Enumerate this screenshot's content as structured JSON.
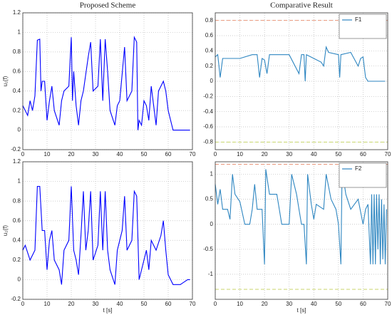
{
  "chart_data": [
    {
      "type": "line",
      "title": "Proposed Scheme",
      "ylabel": "u₁(f)",
      "color": "#0000ff",
      "x": [
        0,
        2,
        3,
        4,
        5,
        6,
        7,
        7.5,
        8,
        9,
        10,
        11,
        12,
        13,
        15,
        16,
        17,
        19,
        20,
        20.5,
        21,
        22,
        23,
        24,
        25,
        27,
        28,
        29,
        31,
        32,
        33,
        34,
        35,
        36,
        38,
        39,
        40,
        42,
        43,
        45,
        46,
        47,
        47.5,
        48,
        49,
        50,
        51,
        52,
        53,
        55,
        56,
        58,
        59,
        60,
        61,
        62,
        65,
        69
      ],
      "values": [
        0.25,
        0.15,
        0.3,
        0.2,
        0.35,
        0.92,
        0.93,
        0.4,
        0.5,
        0.5,
        0.1,
        0.3,
        0.45,
        0.2,
        0.05,
        0.3,
        0.4,
        0.45,
        0.95,
        0.3,
        0.6,
        0.25,
        0.05,
        0.3,
        0.4,
        0.75,
        0.9,
        0.4,
        0.45,
        0.93,
        0.3,
        0.93,
        0.6,
        0.2,
        0.05,
        0.25,
        0.3,
        0.85,
        0.3,
        0.4,
        0.95,
        0.9,
        0,
        0.1,
        0.05,
        0.3,
        0.25,
        0.1,
        0.45,
        0.05,
        0.4,
        0.5,
        0.4,
        0.2,
        0.1,
        0,
        0,
        0
      ],
      "xlim": [
        0,
        70
      ],
      "ylim": [
        -0.2,
        1.2
      ],
      "xticks": [
        0,
        10,
        20,
        30,
        40,
        50,
        60,
        70
      ],
      "yticks": [
        -0.2,
        0,
        0.2,
        0.4,
        0.6,
        0.8,
        1,
        1.2
      ],
      "grid": true
    },
    {
      "type": "line",
      "ylabel": "u₂(f)",
      "xlabel": "t [s]",
      "color": "#0000ff",
      "x": [
        0,
        1,
        3,
        5,
        6,
        7,
        8,
        9,
        10,
        11,
        12,
        13,
        15,
        16,
        17,
        19,
        20,
        21,
        22,
        23,
        24,
        25,
        26,
        27,
        28,
        29,
        31,
        32,
        33,
        34,
        35,
        36,
        38,
        39,
        41,
        42,
        43,
        45,
        46,
        47,
        48,
        49,
        51,
        52,
        53,
        55,
        57,
        58,
        59,
        60,
        62,
        65,
        68,
        69
      ],
      "values": [
        0.3,
        0.35,
        0.2,
        0.3,
        0.95,
        0.95,
        0.5,
        0.5,
        0.1,
        0.4,
        0.5,
        0.2,
        0.1,
        -0.05,
        0.3,
        0.4,
        0.95,
        0.3,
        0.2,
        0.05,
        0.45,
        0.9,
        0.3,
        0.5,
        0.9,
        0.2,
        0.35,
        0.9,
        0.3,
        0.9,
        0.3,
        0.1,
        -0.05,
        0.3,
        0.5,
        0.85,
        0.3,
        0.4,
        0.9,
        0.85,
        0,
        0.1,
        0.3,
        0.1,
        0.4,
        0.3,
        0.45,
        0.6,
        0.3,
        0.05,
        -0.05,
        -0.05,
        0,
        0
      ],
      "xlim": [
        0,
        70
      ],
      "ylim": [
        -0.2,
        1.2
      ],
      "xticks": [
        0,
        10,
        20,
        30,
        40,
        50,
        60,
        70
      ],
      "yticks": [
        -0.2,
        0,
        0.2,
        0.4,
        0.6,
        0.8,
        1,
        1.2
      ],
      "grid": true
    },
    {
      "type": "line",
      "title": "Comparative Result",
      "legend": "upper right",
      "x": [
        0,
        1,
        2,
        3,
        10,
        15,
        17,
        18,
        19,
        20,
        21,
        22,
        30,
        34,
        35,
        36,
        36.5,
        37,
        40,
        43,
        44,
        45,
        46,
        50,
        50.5,
        51,
        55,
        58,
        59,
        60,
        61,
        62,
        69
      ],
      "series": [
        {
          "name": "F1",
          "color": "#2e86c1",
          "values": [
            0.32,
            0.35,
            0.05,
            0.3,
            0.3,
            0.35,
            0.35,
            0.05,
            0.3,
            0.28,
            0.1,
            0.35,
            0.35,
            0.1,
            0.35,
            0.35,
            0,
            0.35,
            0.3,
            0.25,
            0.2,
            0.45,
            0.38,
            0.35,
            0.05,
            0.35,
            0.38,
            0.2,
            0.3,
            0.32,
            0.05,
            0,
            0
          ]
        }
      ],
      "reference_lines": [
        {
          "y": 0.8,
          "color": "#e9967a"
        },
        {
          "y": -0.8,
          "color": "#c8d66b"
        }
      ],
      "xlim": [
        0,
        70
      ],
      "ylim": [
        -0.9,
        0.9
      ],
      "xticks": [
        0,
        10,
        20,
        30,
        40,
        50,
        60,
        70
      ],
      "yticks": [
        -0.8,
        -0.6,
        -0.4,
        -0.2,
        0,
        0.2,
        0.4,
        0.6,
        0.8
      ],
      "grid": true
    },
    {
      "type": "line",
      "xlabel": "t [s]",
      "legend": "upper right",
      "x": [
        0,
        1,
        2,
        3,
        5,
        6,
        7,
        8,
        10,
        12,
        14,
        15,
        16,
        17,
        19,
        20,
        20.5,
        22,
        25,
        26,
        27,
        30,
        31,
        33,
        34,
        35,
        36,
        37,
        37.5,
        39,
        40,
        41,
        44,
        45,
        47,
        49,
        50,
        51,
        51.5,
        53,
        55,
        58,
        60,
        61,
        62,
        63,
        63.5,
        64,
        64.5,
        65,
        65.5,
        66,
        66.5,
        67,
        67.5,
        68,
        68.5,
        69,
        69.5
      ],
      "series": [
        {
          "name": "F2",
          "color": "#2e86c1",
          "values": [
            0.8,
            0.4,
            0.7,
            0.3,
            0.3,
            0.1,
            1,
            0.6,
            0.45,
            0,
            0,
            0.3,
            0.8,
            0.3,
            0.3,
            -0.8,
            1.1,
            0.6,
            0.6,
            0.3,
            0,
            0,
            1,
            0.6,
            0.3,
            0,
            0,
            -0.8,
            1,
            0.4,
            0.1,
            0.4,
            0.3,
            1,
            0.5,
            0.3,
            0,
            -0.8,
            1.1,
            0.6,
            0.3,
            0.5,
            0,
            0.3,
            0.4,
            -0.8,
            0.6,
            -0.8,
            0.6,
            -0.8,
            0.6,
            -0.5,
            0.6,
            -0.8,
            0.5,
            -0.7,
            0.4,
            -0.8,
            0.3
          ]
        }
      ],
      "reference_lines": [
        {
          "y": 1.2,
          "color": "#e9967a"
        },
        {
          "y": -1.3,
          "color": "#c8d66b"
        }
      ],
      "xlim": [
        0,
        70
      ],
      "ylim": [
        -1.5,
        1.25
      ],
      "xticks": [
        0,
        10,
        20,
        30,
        40,
        50,
        60,
        70
      ],
      "yticks": [
        -1,
        -0.5,
        0,
        0.5,
        1
      ],
      "grid": true
    }
  ]
}
